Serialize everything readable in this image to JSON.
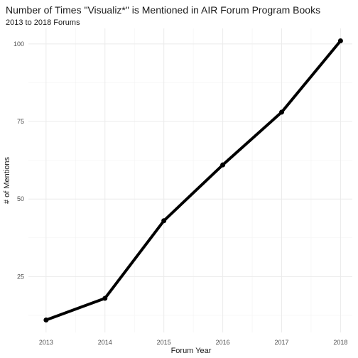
{
  "chart_data": {
    "type": "line",
    "title": "Number of Times \"Visualiz*\" is Mentioned in AIR Forum Program Books",
    "subtitle": "2013 to 2018 Forums",
    "xlabel": "Forum Year",
    "ylabel": "# of Mentions",
    "x": [
      2013,
      2014,
      2015,
      2016,
      2017,
      2018
    ],
    "x_tick_labels": [
      "2013",
      "2014",
      "2015",
      "2016",
      "2017",
      "2018"
    ],
    "y_ticks": [
      25,
      50,
      75,
      100
    ],
    "y_tick_labels": [
      "25",
      "50",
      "75",
      "100"
    ],
    "ylim": [
      7,
      105
    ],
    "xlim": [
      2012.7,
      2018.2
    ],
    "series": [
      {
        "values": [
          11,
          18,
          43,
          61,
          78,
          101
        ]
      }
    ],
    "grid": true,
    "colors": {
      "line": "#000000",
      "grid": "#ebebeb"
    }
  }
}
